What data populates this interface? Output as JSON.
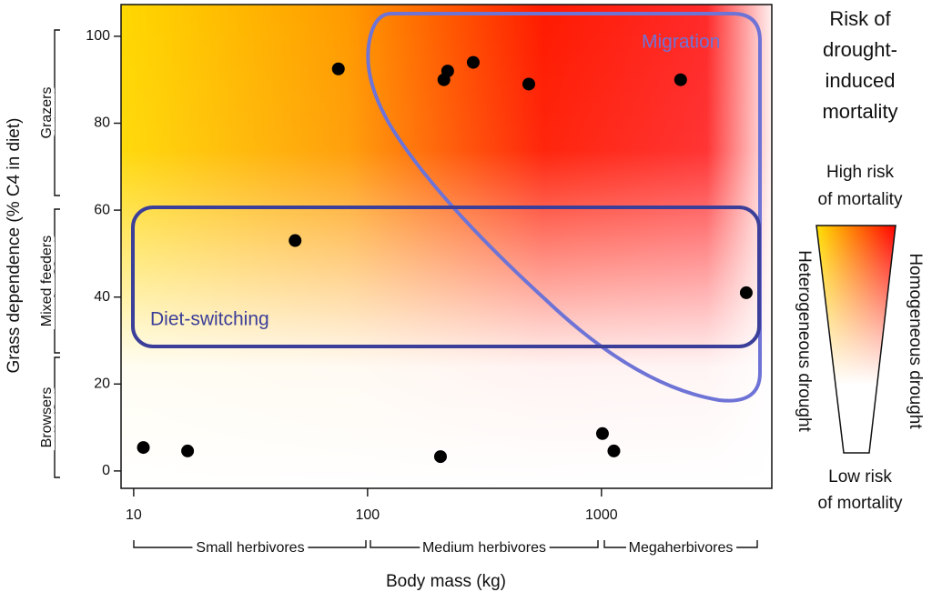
{
  "chart_data": {
    "type": "scatter",
    "x_label": "Body mass (kg)",
    "y_label": "Grass dependence (% C4 in diet)",
    "log_x": true,
    "xlim": [
      8.83,
      5350
    ],
    "ylim": [
      -4,
      107.3
    ],
    "xticks": [
      10,
      100,
      1000
    ],
    "yticks": [
      0,
      20,
      40,
      60,
      80,
      100
    ],
    "series": [
      {
        "color": "#000000",
        "x": [
          75,
          220,
          212,
          283,
          489,
          2180,
          49,
          4160,
          11,
          17,
          205,
          1010,
          1130
        ],
        "values": [
          92.5,
          92,
          90,
          94,
          89,
          90,
          53,
          41,
          5.4,
          4.6,
          3.3,
          8.6,
          4.6
        ]
      }
    ],
    "regions": [
      "Migration",
      "Diet-switching"
    ],
    "diet_groups": [
      "Browsers",
      "Mixed feeders",
      "Grazers"
    ],
    "size_classes": [
      "Small herbivores",
      "Medium herbivores",
      "Megaherbivores"
    ],
    "legend": {
      "title_lines": [
        "Risk of",
        "drought-",
        "induced",
        "mortality"
      ],
      "high": [
        "High risk",
        "of mortality"
      ],
      "low": [
        "Low risk",
        "of mortality"
      ],
      "left": "Heterogeneous drought",
      "right": "Homogeneous drought"
    }
  }
}
